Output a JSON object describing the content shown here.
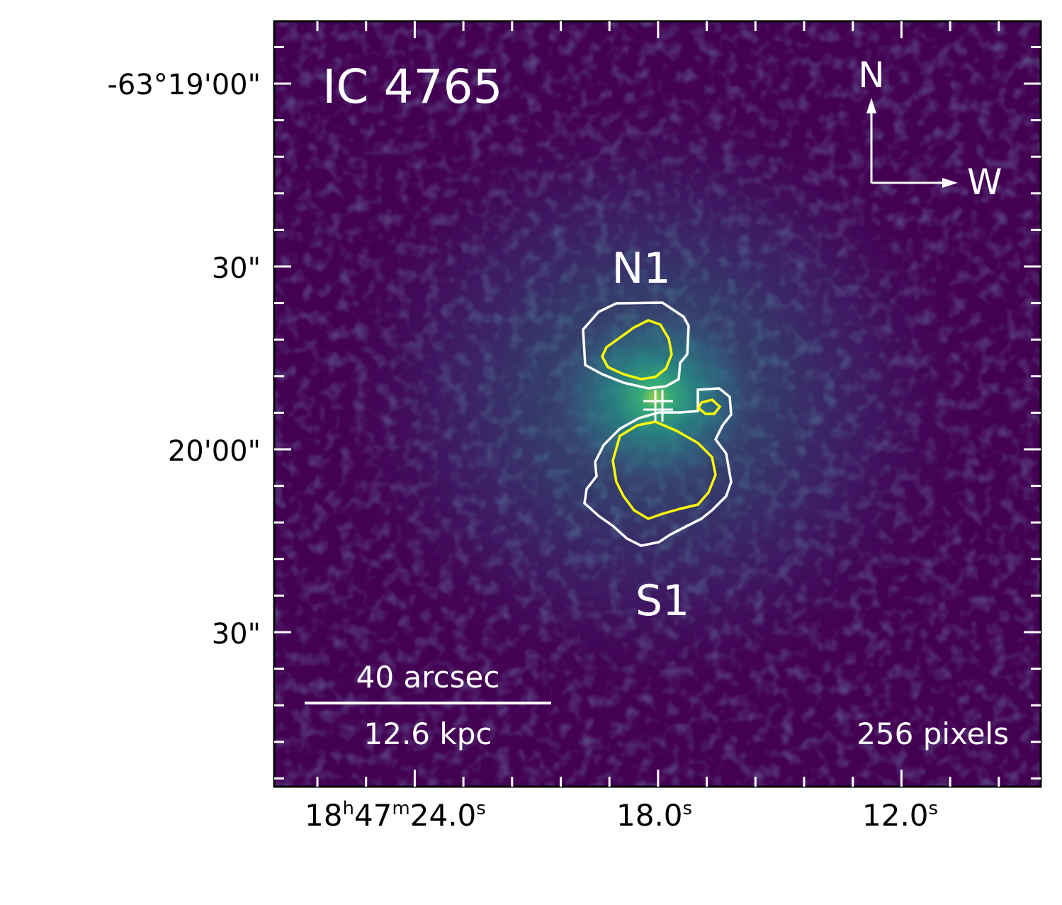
{
  "image": {
    "title": "IC 4765",
    "compass": {
      "north_label": "N",
      "west_label": "W"
    },
    "region_labels": {
      "north": "N1",
      "south": "S1"
    },
    "scale_bar": {
      "angular": "40 arcsec",
      "physical": "12.6 kpc"
    },
    "pixel_note": "256 pixels",
    "contour_colors": {
      "outer": "#ffffff",
      "inner": "#ffff00"
    },
    "colormap": "viridis"
  },
  "axes": {
    "y_ticks": [
      "-63°19'00\"",
      "30\"",
      "20'00\"",
      "30\""
    ],
    "x_ticks": [
      {
        "h": "18",
        "h_unit": "h",
        "m": "47",
        "m_unit": "m",
        "s": "24.0",
        "s_unit": "s"
      },
      {
        "s": "18.0",
        "s_unit": "s"
      },
      {
        "s": "12.0",
        "s_unit": "s"
      }
    ]
  }
}
